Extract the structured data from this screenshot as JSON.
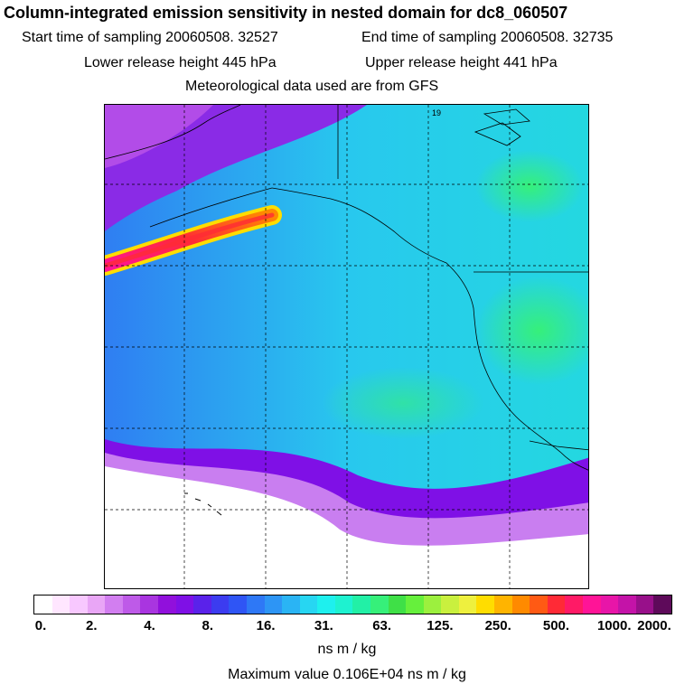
{
  "header": {
    "title": "Column-integrated emission sensitivity in nested domain for dc8_060507",
    "start_time": "Start time of sampling 20060508. 32527",
    "end_time": "End time of sampling 20060508. 32735",
    "lower_height": "Lower release height  445 hPa",
    "upper_height": "Upper release height  441 hPa",
    "met_data": "Meteorological data used are from GFS"
  },
  "map": {
    "grid_label": "19"
  },
  "colorbar": {
    "ticks": [
      "0.",
      "2.",
      "4.",
      "8.",
      "16.",
      "31.",
      "63.",
      "125.",
      "250.",
      "500.",
      "1000.",
      "2000."
    ],
    "colors": [
      "#ffffff",
      "#ffe6ff",
      "#f8c8ff",
      "#e9a6f6",
      "#d27ef0",
      "#be5ae8",
      "#a935e0",
      "#9110dc",
      "#7f10e6",
      "#5a22ea",
      "#3c3cf0",
      "#2f55f5",
      "#2e78f6",
      "#2d95f5",
      "#2ab4f4",
      "#27d6f2",
      "#1ef0ee",
      "#1ef2d0",
      "#22f0a6",
      "#36f07a",
      "#3fe047",
      "#66f03c",
      "#9cf03e",
      "#c9f03e",
      "#eef03e",
      "#ffdd00",
      "#ffb400",
      "#ff8a00",
      "#ff5a14",
      "#ff2a36",
      "#ff1a66",
      "#ff1497",
      "#e815a8",
      "#c413a8",
      "#98108a",
      "#5e0a5a"
    ],
    "units": "ns m / kg"
  },
  "footer": {
    "max_value": "Maximum value  0.106E+04 ns m / kg"
  }
}
